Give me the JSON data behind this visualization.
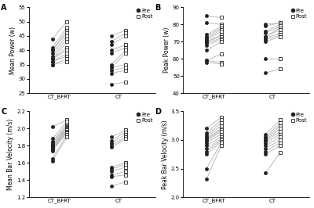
{
  "panel_A": {
    "title": "A",
    "ylabel": "Mean Power (w)",
    "ylim": [
      25,
      55
    ],
    "yticks": [
      25,
      30,
      35,
      40,
      45,
      50,
      55
    ],
    "xticks_labels": [
      "CT_BFRT",
      "CT"
    ],
    "pre_bfrt": [
      44,
      41,
      40,
      40,
      39,
      38,
      37,
      37,
      37,
      36,
      36,
      36,
      35,
      35
    ],
    "post_bfrt": [
      50,
      48,
      47,
      46,
      45,
      44,
      43,
      41,
      40,
      39,
      38,
      38,
      37,
      36
    ],
    "pre_ct": [
      45,
      43,
      42,
      40,
      39,
      35,
      34,
      34,
      33,
      32,
      28
    ],
    "post_ct": [
      47,
      46,
      45,
      42,
      41,
      40,
      39,
      35,
      34,
      33,
      29
    ]
  },
  "panel_B": {
    "title": "B",
    "ylabel": "Peak Power (w)",
    "ylim": [
      40,
      90
    ],
    "yticks": [
      40,
      50,
      60,
      70,
      80,
      90
    ],
    "xticks_labels": [
      "CT_BFRT",
      "CT"
    ],
    "pre_bfrt": [
      85,
      81,
      74,
      73,
      72,
      71,
      70,
      70,
      69,
      68,
      65,
      59,
      59,
      58
    ],
    "post_bfrt": [
      84,
      80,
      79,
      78,
      77,
      76,
      74,
      73,
      72,
      71,
      70,
      63,
      58,
      57
    ],
    "pre_ct": [
      80,
      79,
      76,
      75,
      73,
      73,
      72,
      71,
      70,
      60,
      52
    ],
    "post_ct": [
      81,
      81,
      80,
      79,
      78,
      77,
      75,
      74,
      73,
      60,
      54
    ]
  },
  "panel_C": {
    "title": "C",
    "ylabel": "Mean Bar Velocity (m/s)",
    "ylim": [
      1.2,
      2.2
    ],
    "yticks": [
      1.2,
      1.4,
      1.6,
      1.8,
      2.0,
      2.2
    ],
    "xticks_labels": [
      "CT_BFRT",
      "CT"
    ],
    "pre_bfrt": [
      2.02,
      1.88,
      1.85,
      1.83,
      1.81,
      1.8,
      1.79,
      1.78,
      1.77,
      1.76,
      1.75,
      1.74,
      1.65,
      1.62
    ],
    "post_bfrt": [
      2.1,
      2.08,
      2.05,
      2.03,
      2.02,
      2.01,
      2.0,
      1.99,
      1.98,
      1.97,
      1.96,
      1.95,
      1.93,
      1.9
    ],
    "pre_ct": [
      1.9,
      1.86,
      1.83,
      1.8,
      1.78,
      1.55,
      1.53,
      1.5,
      1.46,
      1.44,
      1.33
    ],
    "post_ct": [
      1.98,
      1.96,
      1.93,
      1.9,
      1.88,
      1.6,
      1.58,
      1.55,
      1.5,
      1.46,
      1.38
    ]
  },
  "panel_D": {
    "title": "D",
    "ylabel": "Peak Bar Velocity (m/s)",
    "ylim": [
      2.0,
      3.5
    ],
    "yticks": [
      2.0,
      2.5,
      3.0,
      3.5
    ],
    "xticks_labels": [
      "CT_BFRT",
      "CT"
    ],
    "pre_bfrt": [
      3.2,
      3.12,
      3.08,
      3.05,
      3.02,
      3.0,
      2.98,
      2.95,
      2.9,
      2.85,
      2.8,
      2.75,
      2.5,
      2.32
    ],
    "post_bfrt": [
      3.4,
      3.35,
      3.3,
      3.25,
      3.2,
      3.18,
      3.15,
      3.1,
      3.05,
      3.02,
      3.0,
      2.97,
      2.95,
      2.9
    ],
    "pre_ct": [
      3.1,
      3.05,
      3.02,
      3.0,
      2.98,
      2.95,
      2.9,
      2.85,
      2.8,
      2.75,
      2.42
    ],
    "post_ct": [
      3.35,
      3.3,
      3.25,
      3.2,
      3.15,
      3.1,
      3.05,
      3.0,
      2.95,
      2.9,
      2.78
    ]
  },
  "pre_color": "#222222",
  "line_color": "#bbbbbb",
  "markersize": 3.5,
  "linewidth": 0.7,
  "bg_color": "#ffffff",
  "legend_fontsize": 5.0,
  "axis_label_fontsize": 5.5,
  "tick_fontsize": 5.0,
  "panel_label_fontsize": 7
}
